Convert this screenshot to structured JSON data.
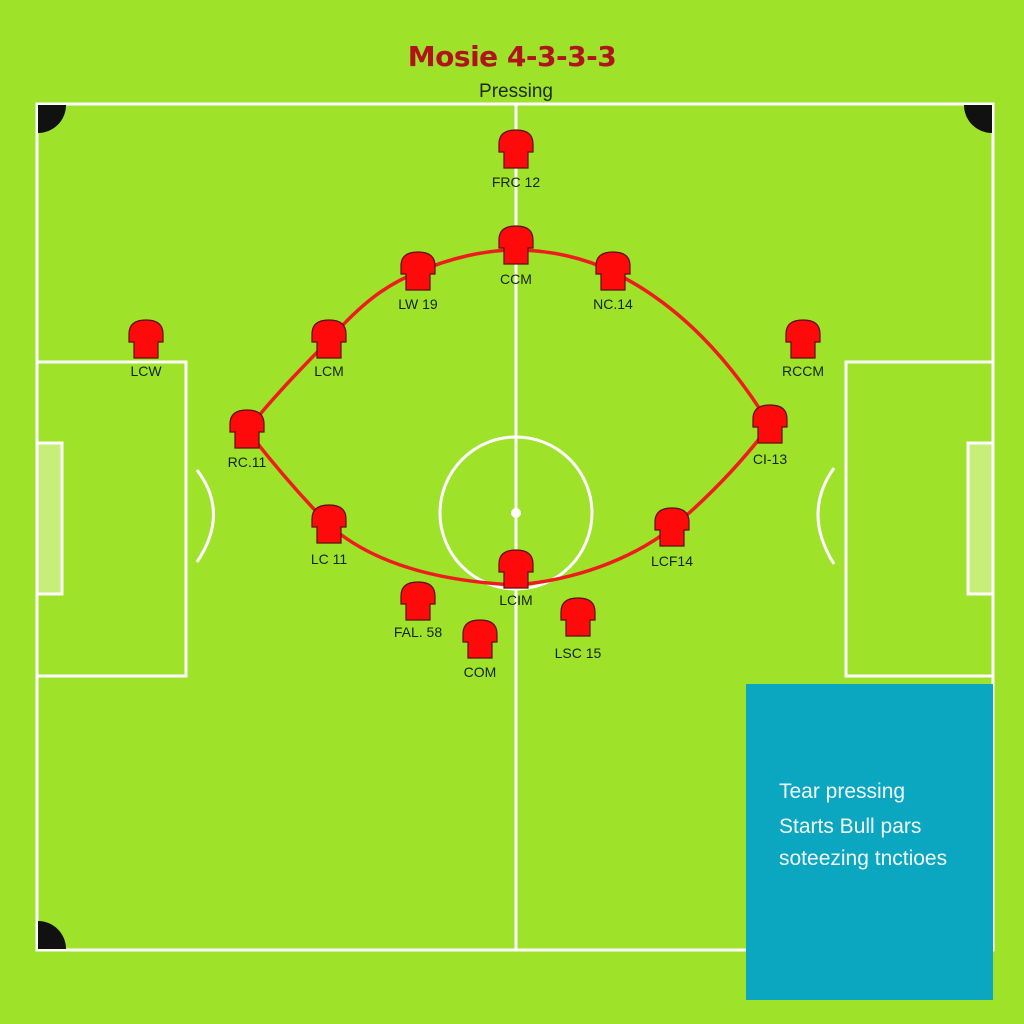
{
  "header": {
    "title": "Mosie 4-3-3-3",
    "subtitle": "Pressing"
  },
  "players": [
    {
      "label": "FRC 12"
    },
    {
      "label": "CCM"
    },
    {
      "label": "LW 19"
    },
    {
      "label": "NC.14"
    },
    {
      "label": "LCW"
    },
    {
      "label": "LCM"
    },
    {
      "label": "RCCM"
    },
    {
      "label": "RC.11"
    },
    {
      "label": "CI-13"
    },
    {
      "label": "LC 11"
    },
    {
      "label": "LCF14"
    },
    {
      "label": "LCIM"
    },
    {
      "label": "FAL. 58"
    },
    {
      "label": "LSC 15"
    },
    {
      "label": "COM"
    }
  ],
  "info_box": {
    "lines": [
      "Tear pressing",
      "Starts Bull pars",
      "soteezing tnctioes"
    ]
  },
  "colors": {
    "pitch": "#9ee22a",
    "lines": "#ffffff",
    "shirt": "#ff0a0a",
    "press_line": "#ee1c1c",
    "title": "#b0141a",
    "info_bg": "#0ba6bf"
  },
  "icons": {
    "player": "jersey-icon"
  }
}
